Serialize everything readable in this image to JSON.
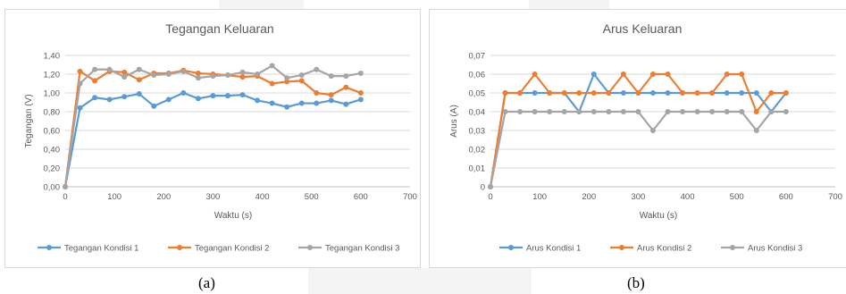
{
  "chart_data": [
    {
      "type": "line",
      "title": "Tegangan Keluaran",
      "xlabel": "Waktu (s)",
      "ylabel": "Tegangan (V)",
      "xlim": [
        0,
        700
      ],
      "ylim": [
        0,
        1.4
      ],
      "x_ticks": [
        "0",
        "100",
        "200",
        "300",
        "400",
        "500",
        "600",
        "700"
      ],
      "y_ticks": [
        "0,00",
        "0,20",
        "0,40",
        "0,60",
        "0,80",
        "1,00",
        "1,20",
        "1,40"
      ],
      "grid": "horizontal",
      "legend": "bottom",
      "x": [
        0,
        30,
        60,
        90,
        120,
        150,
        180,
        210,
        240,
        270,
        300,
        330,
        360,
        390,
        420,
        450,
        480,
        510,
        540,
        570,
        600
      ],
      "series": [
        {
          "name": "Tegangan Kondisi 1",
          "color": "#5b9bd5",
          "values": [
            0,
            0.84,
            0.95,
            0.93,
            0.96,
            0.99,
            0.86,
            0.93,
            1.0,
            0.94,
            0.97,
            0.97,
            0.98,
            0.92,
            0.89,
            0.85,
            0.89,
            0.89,
            0.92,
            0.88,
            0.93
          ]
        },
        {
          "name": "Tegangan Kondisi 2",
          "color": "#ed7d31",
          "values": [
            0,
            1.23,
            1.13,
            1.23,
            1.22,
            1.14,
            1.21,
            1.21,
            1.24,
            1.21,
            1.2,
            1.19,
            1.17,
            1.18,
            1.1,
            1.12,
            1.13,
            1.0,
            0.98,
            1.06,
            1.0
          ]
        },
        {
          "name": "Tegangan Kondisi 3",
          "color": "#a5a5a5",
          "values": [
            0,
            1.1,
            1.25,
            1.25,
            1.17,
            1.25,
            1.19,
            1.2,
            1.23,
            1.16,
            1.18,
            1.19,
            1.22,
            1.2,
            1.29,
            1.16,
            1.19,
            1.25,
            1.18,
            1.18,
            1.21
          ]
        }
      ]
    },
    {
      "type": "line",
      "title": "Arus Keluaran",
      "xlabel": "Waktu (s)",
      "ylabel": "Arus (A)",
      "xlim": [
        0,
        700
      ],
      "ylim": [
        0,
        0.07
      ],
      "x_ticks": [
        "0",
        "100",
        "200",
        "300",
        "400",
        "500",
        "600",
        "700"
      ],
      "y_ticks": [
        "0",
        "0,01",
        "0,02",
        "0,03",
        "0,04",
        "0,05",
        "0,06",
        "0,07"
      ],
      "grid": "horizontal",
      "legend": "bottom",
      "x": [
        0,
        30,
        60,
        90,
        120,
        150,
        180,
        210,
        240,
        270,
        300,
        330,
        360,
        390,
        420,
        450,
        480,
        510,
        540,
        570,
        600
      ],
      "series": [
        {
          "name": "Arus Kondisi 1",
          "color": "#5b9bd5",
          "values": [
            0,
            0.05,
            0.05,
            0.05,
            0.05,
            0.05,
            0.04,
            0.06,
            0.05,
            0.05,
            0.05,
            0.05,
            0.05,
            0.05,
            0.05,
            0.05,
            0.05,
            0.05,
            0.05,
            0.04,
            0.05
          ]
        },
        {
          "name": "Arus Kondisi 2",
          "color": "#ed7d31",
          "values": [
            0,
            0.05,
            0.05,
            0.06,
            0.05,
            0.05,
            0.05,
            0.05,
            0.05,
            0.06,
            0.05,
            0.06,
            0.06,
            0.05,
            0.05,
            0.05,
            0.06,
            0.06,
            0.04,
            0.05,
            0.05
          ]
        },
        {
          "name": "Arus Kondisi 3",
          "color": "#a5a5a5",
          "values": [
            0,
            0.04,
            0.04,
            0.04,
            0.04,
            0.04,
            0.04,
            0.04,
            0.04,
            0.04,
            0.04,
            0.03,
            0.04,
            0.04,
            0.04,
            0.04,
            0.04,
            0.04,
            0.03,
            0.04,
            0.04
          ]
        }
      ]
    }
  ],
  "captions": {
    "a": "(a)",
    "b": "(b)"
  },
  "colors": {
    "grid": "#d9d9d9",
    "axis": "#bfbfbf",
    "text": "#595959"
  }
}
